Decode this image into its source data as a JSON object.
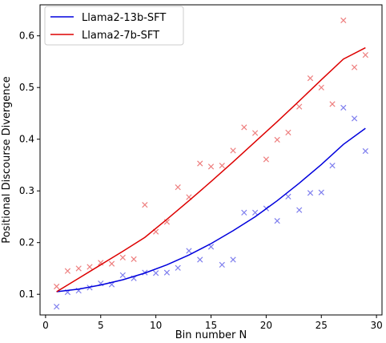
{
  "chart_data": {
    "type": "scatter",
    "xlabel": "Bin number N",
    "ylabel": "Positional Discourse Divergence",
    "xlim": [
      -0.5,
      30.5
    ],
    "ylim": [
      0.06,
      0.66
    ],
    "xticks": [
      0,
      5,
      10,
      15,
      20,
      25,
      30
    ],
    "yticks": [
      0.1,
      0.2,
      0.3,
      0.4,
      0.5,
      0.6
    ],
    "xtick_labels": [
      "0",
      "5",
      "10",
      "15",
      "20",
      "25",
      "30"
    ],
    "ytick_labels": [
      "0.1",
      "0.2",
      "0.3",
      "0.4",
      "0.5",
      "0.6"
    ],
    "grid": false,
    "legend_position": "upper-left",
    "series": [
      {
        "name": "Llama2-13b-SFT",
        "color": "#0000dd",
        "marker": "x",
        "x": [
          1,
          2,
          3,
          4,
          5,
          6,
          7,
          8,
          9,
          10,
          11,
          12,
          13,
          14,
          15,
          16,
          17,
          18,
          19,
          20,
          21,
          22,
          23,
          24,
          25,
          26,
          27,
          28,
          29
        ],
        "y": [
          0.076,
          0.104,
          0.107,
          0.113,
          0.121,
          0.119,
          0.137,
          0.131,
          0.142,
          0.141,
          0.142,
          0.151,
          0.184,
          0.167,
          0.192,
          0.157,
          0.167,
          0.258,
          0.258,
          0.266,
          0.242,
          0.289,
          0.263,
          0.296,
          0.297,
          0.349,
          0.461,
          0.44,
          0.377
        ],
        "fit": [
          [
            1,
            0.105
          ],
          [
            3,
            0.11
          ],
          [
            5,
            0.118
          ],
          [
            7,
            0.128
          ],
          [
            9,
            0.141
          ],
          [
            11,
            0.157
          ],
          [
            13,
            0.176
          ],
          [
            15,
            0.198
          ],
          [
            17,
            0.223
          ],
          [
            19,
            0.25
          ],
          [
            21,
            0.281
          ],
          [
            23,
            0.315
          ],
          [
            25,
            0.351
          ],
          [
            27,
            0.39
          ],
          [
            29,
            0.421
          ]
        ]
      },
      {
        "name": "Llama2-7b-SFT",
        "color": "#dd0000",
        "marker": "x",
        "x": [
          1,
          2,
          3,
          4,
          5,
          6,
          7,
          8,
          9,
          10,
          11,
          12,
          13,
          14,
          15,
          16,
          17,
          18,
          19,
          20,
          21,
          22,
          23,
          24,
          25,
          26,
          27,
          28,
          29
        ],
        "y": [
          0.115,
          0.145,
          0.15,
          0.153,
          0.161,
          0.159,
          0.171,
          0.168,
          0.273,
          0.221,
          0.24,
          0.307,
          0.288,
          0.353,
          0.347,
          0.349,
          0.378,
          0.423,
          0.412,
          0.361,
          0.399,
          0.413,
          0.463,
          0.518,
          0.5,
          0.468,
          0.63,
          0.539,
          0.563
        ],
        "fit": [
          [
            1,
            0.105
          ],
          [
            3,
            0.131
          ],
          [
            5,
            0.157
          ],
          [
            7,
            0.183
          ],
          [
            9,
            0.21
          ],
          [
            11,
            0.245
          ],
          [
            13,
            0.281
          ],
          [
            15,
            0.318
          ],
          [
            17,
            0.356
          ],
          [
            19,
            0.395
          ],
          [
            21,
            0.434
          ],
          [
            23,
            0.474
          ],
          [
            25,
            0.515
          ],
          [
            27,
            0.555
          ],
          [
            29,
            0.577
          ]
        ]
      }
    ]
  }
}
